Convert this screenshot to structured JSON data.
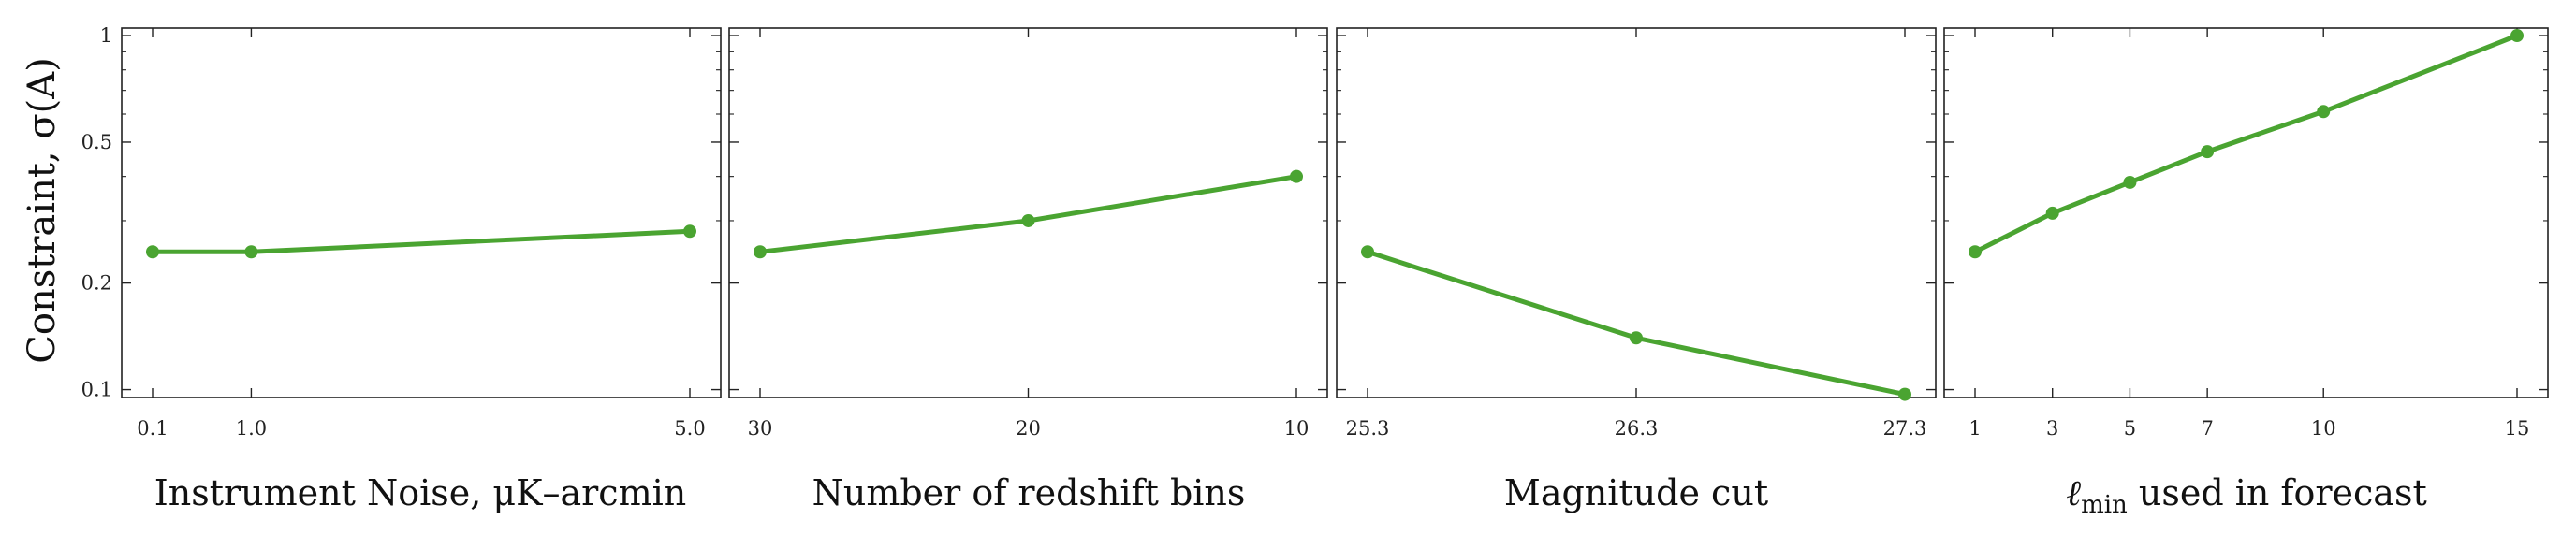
{
  "chart_data": [
    {
      "type": "line",
      "xlabel": "Instrument Noise, μK–arcmin",
      "ylabel": "Constraint, σ(A)",
      "yscale": "log",
      "ylim": [
        0.095,
        1.05
      ],
      "ytick_labels": [
        "0.1",
        "0.2",
        "0.5",
        "1"
      ],
      "xtick_labels": [
        "0.1",
        "1.0",
        "5.0"
      ],
      "x": [
        0.1,
        1.0,
        5.0
      ],
      "y": [
        0.245,
        0.245,
        0.28
      ],
      "color": "#4aa431"
    },
    {
      "type": "line",
      "xlabel": "Number of redshift bins",
      "yscale": "log",
      "ylim": [
        0.095,
        1.05
      ],
      "xtick_labels": [
        "30",
        "20",
        "10"
      ],
      "x": [
        30,
        20,
        10
      ],
      "y": [
        0.245,
        0.3,
        0.4
      ],
      "color": "#4aa431"
    },
    {
      "type": "line",
      "xlabel": "Magnitude cut",
      "yscale": "log",
      "ylim": [
        0.095,
        1.05
      ],
      "xtick_labels": [
        "25.3",
        "26.3",
        "27.3"
      ],
      "x": [
        25.3,
        26.3,
        27.3
      ],
      "y": [
        0.245,
        0.14,
        0.097
      ],
      "color": "#4aa431"
    },
    {
      "type": "line",
      "xlabel_main": "ℓ",
      "xlabel_sub": "min",
      "xlabel_rest": " used in forecast",
      "yscale": "log",
      "ylim": [
        0.095,
        1.05
      ],
      "xtick_labels": [
        "1",
        "3",
        "5",
        "7",
        "10",
        "15"
      ],
      "x": [
        1,
        3,
        5,
        7,
        10,
        15
      ],
      "y": [
        0.245,
        0.315,
        0.385,
        0.47,
        0.61,
        1.0
      ],
      "color": "#4aa431"
    }
  ]
}
